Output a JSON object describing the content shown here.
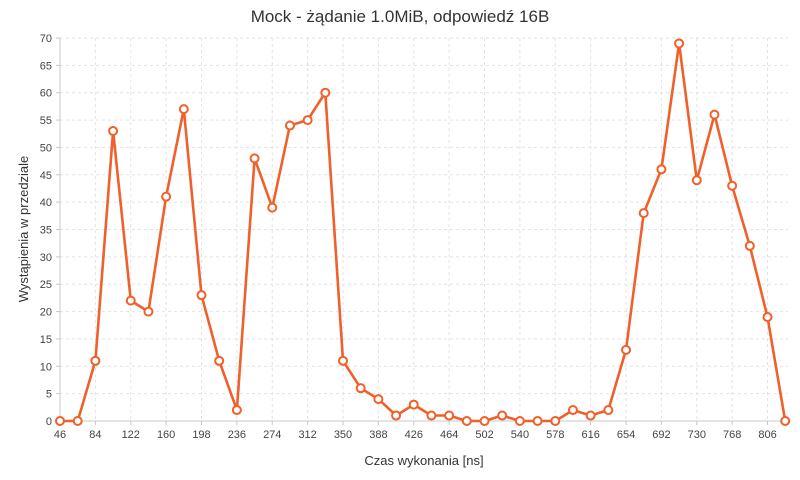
{
  "chart_data": {
    "type": "line",
    "title": "Mock - żądanie 1.0MiB, odpowiedź 16B",
    "xlabel": "Czas wykonania [ns]",
    "ylabel": "Wystąpienia w przedziale",
    "x_ticks": [
      "46",
      "84",
      "122",
      "160",
      "198",
      "236",
      "274",
      "312",
      "350",
      "388",
      "426",
      "464",
      "502",
      "540",
      "578",
      "616",
      "654",
      "692",
      "730",
      "768",
      "806"
    ],
    "xlim": [
      46,
      828
    ],
    "ylim": [
      0,
      70
    ],
    "y_ticks": [
      0,
      5,
      10,
      15,
      20,
      25,
      30,
      35,
      40,
      45,
      50,
      55,
      60,
      65,
      70
    ],
    "grid": true,
    "color": "#f0602a",
    "series": [
      {
        "x": [
          46,
          65,
          84,
          103,
          122,
          141,
          160,
          179,
          198,
          217,
          236,
          255,
          274,
          293,
          312,
          331,
          350,
          369,
          388,
          407,
          426,
          445,
          464,
          483,
          502,
          521,
          540,
          559,
          578,
          597,
          616,
          635,
          654,
          673,
          692,
          711,
          730,
          749,
          768,
          787,
          806,
          825
        ],
        "values": [
          0,
          0,
          11,
          53,
          22,
          20,
          41,
          57,
          23,
          11,
          2,
          48,
          39,
          54,
          55,
          60,
          11,
          6,
          4,
          1,
          3,
          1,
          1,
          0,
          0,
          1,
          0,
          0,
          0,
          2,
          1,
          2,
          13,
          38,
          46,
          69,
          44,
          56,
          43,
          32,
          19,
          0
        ]
      }
    ]
  }
}
